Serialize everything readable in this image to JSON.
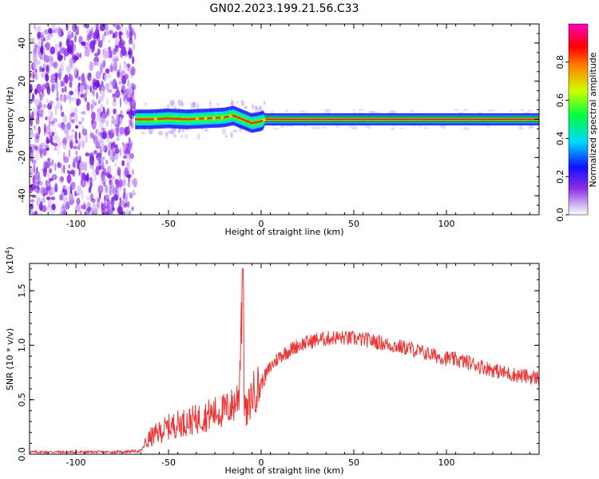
{
  "title": "GN02.2023.199.21.56.C33",
  "chart_data": [
    {
      "type": "heatmap",
      "xlabel": "Height of straight line (km)",
      "ylabel": "Frequency (Hz)",
      "xlim": [
        -125,
        150
      ],
      "ylim": [
        -50,
        50
      ],
      "x_ticks": [
        -100,
        -50,
        0,
        50,
        100
      ],
      "y_ticks": [
        -40,
        -20,
        0,
        20,
        40
      ],
      "colorbar": {
        "label": "Normalized spectral amplitude",
        "range": [
          0,
          1
        ],
        "ticks": [
          "0.0",
          "0.2",
          "0.4",
          "0.6",
          "0.8"
        ],
        "colormap": [
          "#ffffff",
          "#8a2be2",
          "#0000ff",
          "#00ffff",
          "#00ff00",
          "#ffff00",
          "#ff0000",
          "#ff00ff"
        ]
      },
      "trace": {
        "x": [
          -68,
          -60,
          -50,
          -40,
          -30,
          -20,
          -15,
          -10,
          -5,
          0,
          2,
          150
        ],
        "y": [
          0,
          0,
          0.5,
          0,
          0.5,
          1,
          2,
          0,
          -2,
          -1,
          0,
          0
        ],
        "noise_region_x": [
          -125,
          -68
        ],
        "trace_color": "#ff2020"
      }
    },
    {
      "type": "line",
      "xlabel": "Height of straight line (km)",
      "ylabel": "SNR (10 * v/v)",
      "y_multiplier": "(x10",
      "y_multiplier_exp": "4",
      "y_multiplier_close": ")",
      "xlim": [
        -125,
        150
      ],
      "ylim": [
        0,
        1.75
      ],
      "x_ticks": [
        -100,
        -50,
        0,
        50,
        100
      ],
      "y_ticks": [
        "0.0",
        "0.5",
        "1.0",
        "1.5"
      ],
      "line_color": "#ee3333",
      "series": [
        {
          "x": [
            -125,
            -100,
            -80,
            -65,
            -60,
            -55,
            -50,
            -45,
            -40,
            -35,
            -30,
            -25,
            -20,
            -15,
            -12,
            -10,
            -9,
            -8,
            -5,
            0,
            5,
            10,
            20,
            30,
            40,
            50,
            60,
            70,
            80,
            90,
            100,
            110,
            120,
            130,
            140,
            150
          ],
          "y": [
            0.02,
            0.02,
            0.02,
            0.03,
            0.15,
            0.2,
            0.25,
            0.28,
            0.3,
            0.32,
            0.35,
            0.38,
            0.4,
            0.45,
            0.55,
            1.7,
            0.5,
            0.35,
            0.55,
            0.65,
            0.8,
            0.9,
            1.0,
            1.05,
            1.07,
            1.06,
            1.04,
            1.0,
            0.97,
            0.92,
            0.88,
            0.85,
            0.8,
            0.75,
            0.72,
            0.7
          ]
        }
      ]
    }
  ]
}
